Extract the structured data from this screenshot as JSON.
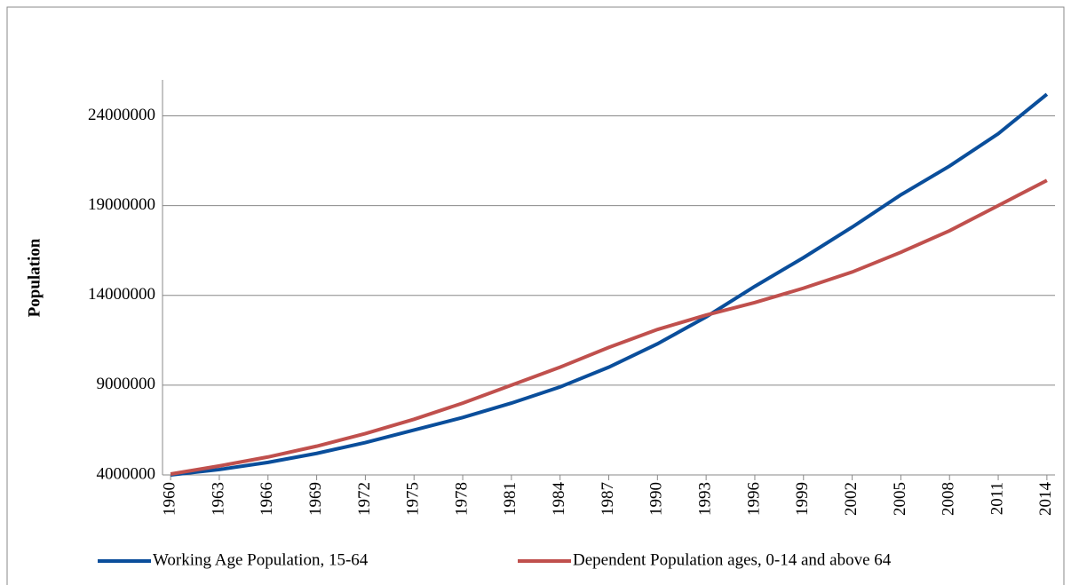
{
  "chart_data": {
    "type": "line",
    "y_label": "Population",
    "x": [
      1960,
      1963,
      1966,
      1969,
      1972,
      1975,
      1978,
      1981,
      1984,
      1987,
      1990,
      1993,
      1996,
      1999,
      2002,
      2005,
      2008,
      2011,
      2014
    ],
    "series": [
      {
        "name": "Working Age Population, 15-64",
        "color": "#0a4e9b",
        "values": [
          4000000,
          4300000,
          4700000,
          5200000,
          5800000,
          6500000,
          7200000,
          8000000,
          8900000,
          10000000,
          11300000,
          12800000,
          14500000,
          16100000,
          17800000,
          19600000,
          21200000,
          23000000,
          25200000
        ]
      },
      {
        "name": "Dependent Population ages, 0-14 and above 64",
        "color": "#c0504d",
        "values": [
          4050000,
          4500000,
          5000000,
          5600000,
          6300000,
          7100000,
          8000000,
          9000000,
          10000000,
          11100000,
          12100000,
          12900000,
          13600000,
          14400000,
          15300000,
          16400000,
          17600000,
          19000000,
          20400000
        ]
      }
    ],
    "xlim": [
      1959.5,
      2014.5
    ],
    "xticks": [
      1960,
      1963,
      1966,
      1969,
      1972,
      1975,
      1978,
      1981,
      1984,
      1987,
      1990,
      1993,
      1996,
      1999,
      2002,
      2005,
      2008,
      2011,
      2014
    ],
    "ylim": [
      4000000,
      26000000
    ],
    "yticks": [
      4000000,
      9000000,
      14000000,
      19000000,
      24000000
    ],
    "grid": true,
    "legend": "bottom"
  }
}
